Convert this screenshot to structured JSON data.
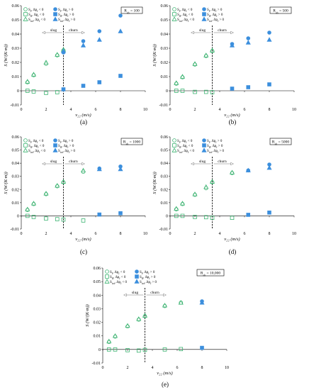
{
  "chart_data": [
    {
      "type": "scatter",
      "caption": "(a)",
      "xlabel": "v₂₂ (m/s)",
      "ylabel": "S (W/(K·m))",
      "xlim": [
        0,
        10
      ],
      "ylim": [
        -0.01,
        0.06
      ],
      "xticks": [
        0,
        2,
        4,
        6,
        8,
        10
      ],
      "yticks": [
        -0.01,
        0,
        0.01,
        0.02,
        0.03,
        0.04,
        0.05,
        0.06
      ],
      "box_label": "R_sh = 100",
      "regime_labels": [
        "slug",
        "churn"
      ],
      "transition_x": 3.4,
      "legend": [
        "S_f, Δp_f < 0",
        "S_f, Δp_f > 0",
        "S_fl, Δp_f < 0",
        "S_fl, Δp_f > 0",
        "S_tot, Δp_f < 0",
        "S_tot, Δp_f > 0"
      ],
      "series": [
        {
          "name": "S_f, Δp_f < 0",
          "marker": "circle-open",
          "color": "#3cb371",
          "points": [
            [
              0.5,
              0.006
            ],
            [
              1,
              0.011
            ],
            [
              2,
              0.019
            ],
            [
              2.9,
              0.025
            ],
            [
              3.4,
              0.0285
            ]
          ]
        },
        {
          "name": "S_tot, Δp_f < 0",
          "marker": "triangle-open",
          "color": "#3cb371",
          "points": [
            [
              0.5,
              0.0065
            ],
            [
              1,
              0.0115
            ],
            [
              2,
              0.02
            ],
            [
              2.9,
              0.0255
            ],
            [
              3.4,
              0.029
            ]
          ]
        },
        {
          "name": "S_fl, Δp_f < 0",
          "marker": "square-open",
          "color": "#3cb371",
          "points": [
            [
              0.5,
              0.0
            ],
            [
              1,
              -0.0005
            ],
            [
              2,
              -0.0015
            ],
            [
              2.9,
              -0.001
            ]
          ]
        },
        {
          "name": "S_f, Δp_f > 0",
          "marker": "circle-filled",
          "color": "#3c8fdd",
          "points": [
            [
              3.4,
              0.027
            ],
            [
              5,
              0.035
            ],
            [
              6.3,
              0.042
            ],
            [
              8,
              0.053
            ]
          ]
        },
        {
          "name": "S_tot, Δp_f > 0",
          "marker": "triangle-filled",
          "color": "#3c8fdd",
          "points": [
            [
              3.4,
              0.028
            ],
            [
              5,
              0.032
            ],
            [
              6.3,
              0.036
            ],
            [
              8,
              0.042
            ]
          ]
        },
        {
          "name": "S_fl, Δp_f > 0",
          "marker": "square-filled",
          "color": "#3c8fdd",
          "points": [
            [
              3.4,
              0.001
            ],
            [
              5,
              0.0035
            ],
            [
              6.3,
              0.006
            ],
            [
              8,
              0.0105
            ]
          ]
        }
      ]
    },
    {
      "type": "scatter",
      "caption": "(b)",
      "xlabel": "v₂₂ (m/s)",
      "ylabel": "S (W/(K·m))",
      "xlim": [
        0,
        10
      ],
      "ylim": [
        -0.01,
        0.06
      ],
      "xticks": [
        0,
        2,
        4,
        6,
        8,
        10
      ],
      "yticks": [
        -0.01,
        0,
        0.01,
        0.02,
        0.03,
        0.04,
        0.05,
        0.06
      ],
      "box_label": "R_sh = 500",
      "regime_labels": [
        "slug",
        "churn"
      ],
      "transition_x": 3.4,
      "legend": [
        "S_f, Δp_f < 0",
        "S_f, Δp_f > 0",
        "S_fl, Δp_f < 0",
        "S_fl, Δp_f > 0",
        "S_tot, Δp_f < 0",
        "S_tot, Δp_f > 0"
      ],
      "series": [
        {
          "name": "S_f, Δp_f < 0",
          "marker": "circle-open",
          "color": "#3cb371",
          "points": [
            [
              0.5,
              0.005
            ],
            [
              1,
              0.0095
            ],
            [
              2,
              0.0185
            ],
            [
              2.9,
              0.0245
            ],
            [
              3.4,
              0.028
            ]
          ]
        },
        {
          "name": "S_tot, Δp_f < 0",
          "marker": "triangle-open",
          "color": "#3cb371",
          "points": [
            [
              0.5,
              0.0055
            ],
            [
              1,
              0.01
            ],
            [
              2,
              0.019
            ],
            [
              2.9,
              0.025
            ],
            [
              3.4,
              0.0285
            ]
          ]
        },
        {
          "name": "S_fl, Δp_f < 0",
          "marker": "square-open",
          "color": "#3cb371",
          "points": [
            [
              0.5,
              0.0
            ],
            [
              1,
              0.0
            ],
            [
              2,
              -0.0008
            ],
            [
              2.9,
              -0.0008
            ],
            [
              3.4,
              -0.001
            ]
          ]
        },
        {
          "name": "S_f, Δp_f > 0",
          "marker": "circle-filled",
          "color": "#3c8fdd",
          "points": [
            [
              5,
              0.033
            ],
            [
              6.3,
              0.037
            ],
            [
              8,
              0.041
            ]
          ]
        },
        {
          "name": "S_tot, Δp_f > 0",
          "marker": "triangle-filled",
          "color": "#3c8fdd",
          "points": [
            [
              5,
              0.032
            ],
            [
              6.3,
              0.034
            ],
            [
              8,
              0.036
            ]
          ]
        },
        {
          "name": "S_fl, Δp_f > 0",
          "marker": "square-filled",
          "color": "#3c8fdd",
          "points": [
            [
              5,
              0.0015
            ],
            [
              6.3,
              0.0025
            ],
            [
              8,
              0.0045
            ]
          ]
        }
      ]
    },
    {
      "type": "scatter",
      "caption": "(c)",
      "xlabel": "v₂₂ (m/s)",
      "ylabel": "S (W/(K·m))",
      "xlim": [
        0,
        10
      ],
      "ylim": [
        -0.01,
        0.06
      ],
      "xticks": [
        0,
        2,
        4,
        6,
        8,
        10
      ],
      "yticks": [
        -0.01,
        0,
        0.01,
        0.02,
        0.03,
        0.04,
        0.05,
        0.06
      ],
      "box_label": "R_sh = 1000",
      "regime_labels": [
        "slug",
        "churn"
      ],
      "transition_x": 3.4,
      "legend": [
        "S_f, Δp_f < 0",
        "S_f, Δp_f > 0",
        "S_fl, Δp_f < 0",
        "S_fl, Δp_f > 0",
        "S_tot, Δp_f < 0",
        "S_tot, Δp_f > 0"
      ],
      "series": [
        {
          "name": "S_f, Δp_f < 0",
          "marker": "circle-open",
          "color": "#3cb371",
          "points": [
            [
              0.5,
              0.0045
            ],
            [
              1,
              0.009
            ],
            [
              2,
              0.0165
            ],
            [
              2.9,
              0.0225
            ],
            [
              3.4,
              0.0255
            ],
            [
              5,
              0.0335
            ]
          ]
        },
        {
          "name": "S_tot, Δp_f < 0",
          "marker": "triangle-open",
          "color": "#3cb371",
          "points": [
            [
              0.5,
              0.005
            ],
            [
              1,
              0.0095
            ],
            [
              2,
              0.017
            ],
            [
              2.9,
              0.023
            ],
            [
              3.4,
              0.026
            ],
            [
              5,
              0.0345
            ]
          ]
        },
        {
          "name": "S_fl, Δp_f < 0",
          "marker": "square-open",
          "color": "#3cb371",
          "points": [
            [
              0.5,
              0.0
            ],
            [
              1,
              -0.0008
            ],
            [
              2,
              -0.002
            ],
            [
              2.9,
              -0.0025
            ],
            [
              3.4,
              -0.0028
            ],
            [
              5,
              -0.0035
            ]
          ]
        },
        {
          "name": "S_f, Δp_f > 0",
          "marker": "circle-filled",
          "color": "#3c8fdd",
          "points": [
            [
              6.3,
              0.036
            ],
            [
              8,
              0.0375
            ]
          ]
        },
        {
          "name": "S_tot, Δp_f > 0",
          "marker": "triangle-filled",
          "color": "#3c8fdd",
          "points": [
            [
              6.3,
              0.0355
            ],
            [
              8,
              0.0355
            ]
          ]
        },
        {
          "name": "S_fl, Δp_f > 0",
          "marker": "square-filled",
          "color": "#3c8fdd",
          "points": [
            [
              6.3,
              0.001
            ],
            [
              8,
              0.002
            ]
          ]
        }
      ]
    },
    {
      "type": "scatter",
      "caption": "(d)",
      "xlabel": "v₂₂ (m/s)",
      "ylabel": "S (W/(K·m))",
      "xlim": [
        0,
        10
      ],
      "ylim": [
        -0.01,
        0.06
      ],
      "xticks": [
        0,
        2,
        4,
        6,
        8,
        10
      ],
      "yticks": [
        -0.01,
        0,
        0.01,
        0.02,
        0.03,
        0.04,
        0.05,
        0.06
      ],
      "box_label": "R_sh = 5000",
      "regime_labels": [
        "slug",
        "churn"
      ],
      "transition_x": 3.4,
      "legend": [
        "S_f, Δp_f < 0",
        "S_f, Δp_f > 0",
        "S_fl, Δp_f < 0",
        "S_fl, Δp_f > 0",
        "S_tot, Δp_f < 0",
        "S_tot, Δp_f > 0"
      ],
      "series": [
        {
          "name": "S_f, Δp_f < 0",
          "marker": "circle-open",
          "color": "#3cb371",
          "points": [
            [
              0.5,
              0.005
            ],
            [
              1,
              0.009
            ],
            [
              2,
              0.016
            ],
            [
              2.9,
              0.021
            ],
            [
              3.4,
              0.0255
            ],
            [
              5,
              0.0325
            ]
          ]
        },
        {
          "name": "S_tot, Δp_f < 0",
          "marker": "triangle-open",
          "color": "#3cb371",
          "points": [
            [
              0.5,
              0.0055
            ],
            [
              1,
              0.0095
            ],
            [
              2,
              0.0165
            ],
            [
              2.9,
              0.022
            ],
            [
              3.4,
              0.026
            ],
            [
              5,
              0.033
            ]
          ]
        },
        {
          "name": "S_fl, Δp_f < 0",
          "marker": "square-open",
          "color": "#3cb371",
          "points": [
            [
              0.5,
              0.0
            ],
            [
              1,
              0.0
            ],
            [
              2,
              -0.0008
            ],
            [
              2.9,
              -0.001
            ],
            [
              3.4,
              -0.0015
            ],
            [
              5,
              -0.0015
            ]
          ]
        },
        {
          "name": "S_f, Δp_f > 0",
          "marker": "circle-filled",
          "color": "#3c8fdd",
          "points": [
            [
              6.3,
              0.0345
            ],
            [
              8,
              0.039
            ]
          ]
        },
        {
          "name": "S_tot, Δp_f > 0",
          "marker": "triangle-filled",
          "color": "#3c8fdd",
          "points": [
            [
              6.3,
              0.0345
            ],
            [
              8,
              0.0365
            ]
          ]
        },
        {
          "name": "S_fl, Δp_f > 0",
          "marker": "square-filled",
          "color": "#3c8fdd",
          "points": [
            [
              6.3,
              0.0008
            ],
            [
              8,
              0.0025
            ]
          ]
        }
      ]
    },
    {
      "type": "scatter",
      "caption": "(e)",
      "xlabel": "v₂₂ (m/s)",
      "ylabel": "S (W/(K·m))",
      "xlim": [
        0,
        10
      ],
      "ylim": [
        -0.01,
        0.06
      ],
      "xticks": [
        0,
        2,
        4,
        6,
        8,
        10
      ],
      "yticks": [
        -0.01,
        0,
        0.01,
        0.02,
        0.03,
        0.04,
        0.05,
        0.06
      ],
      "box_label": "R_sh = 10,000",
      "regime_labels": [
        "slug",
        "churn"
      ],
      "transition_x": 3.4,
      "legend": [
        "S_f, Δp_f < 0",
        "S_f, Δp_f > 0",
        "S_fl, Δp_f < 0",
        "S_fl, Δp_f > 0",
        "S_tot, Δp_f < 0",
        "S_tot, Δp_f > 0"
      ],
      "series": [
        {
          "name": "S_f, Δp_f < 0",
          "marker": "circle-open",
          "color": "#3cb371",
          "points": [
            [
              0.5,
              0.0055
            ],
            [
              1,
              0.0095
            ],
            [
              2,
              0.017
            ],
            [
              2.9,
              0.022
            ],
            [
              3.4,
              0.0245
            ],
            [
              5,
              0.032
            ],
            [
              6.3,
              0.0345
            ]
          ]
        },
        {
          "name": "S_tot, Δp_f < 0",
          "marker": "triangle-open",
          "color": "#3cb371",
          "points": [
            [
              0.5,
              0.006
            ],
            [
              1,
              0.01
            ],
            [
              2,
              0.0175
            ],
            [
              2.9,
              0.0225
            ],
            [
              3.4,
              0.025
            ],
            [
              5,
              0.0325
            ],
            [
              6.3,
              0.0345
            ]
          ]
        },
        {
          "name": "S_fl, Δp_f < 0",
          "marker": "square-open",
          "color": "#3cb371",
          "points": [
            [
              0.5,
              0.0
            ],
            [
              1,
              0.0
            ],
            [
              2,
              -0.0005
            ],
            [
              2.9,
              -0.0008
            ],
            [
              3.4,
              -0.0003
            ],
            [
              5,
              0.0
            ],
            [
              6.3,
              0.0003
            ]
          ]
        },
        {
          "name": "S_f, Δp_f > 0",
          "marker": "circle-filled",
          "color": "#3c8fdd",
          "points": [
            [
              8,
              0.0355
            ]
          ]
        },
        {
          "name": "S_tot, Δp_f > 0",
          "marker": "triangle-filled",
          "color": "#3c8fdd",
          "points": [
            [
              8,
              0.0345
            ]
          ]
        },
        {
          "name": "S_fl, Δp_f > 0",
          "marker": "square-filled",
          "color": "#3c8fdd",
          "points": [
            [
              8,
              0.0012
            ]
          ]
        }
      ]
    }
  ]
}
